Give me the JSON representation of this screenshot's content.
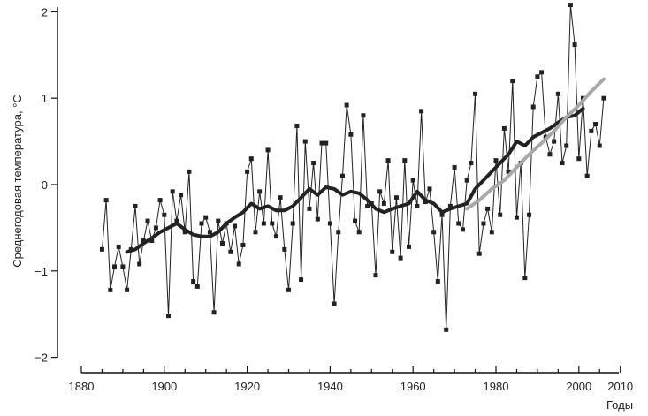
{
  "chart_data": {
    "type": "line",
    "title": "",
    "xlabel": "Годы",
    "ylabel": "Среднегодовая температура, °С",
    "xlim": [
      1880,
      2010
    ],
    "ylim": [
      -2,
      2
    ],
    "x_ticks": [
      "1880",
      "1900",
      "1920",
      "1940",
      "1960",
      "1980",
      "2000",
      "2010"
    ],
    "y_ticks": [
      "−2",
      "−1",
      "0",
      "1",
      "2"
    ],
    "grid": false,
    "legend": "none",
    "series": [
      {
        "style": "thin-line-square-markers",
        "color": "#222222",
        "x": [
          1885,
          1886,
          1887,
          1888,
          1889,
          1890,
          1891,
          1892,
          1893,
          1894,
          1895,
          1896,
          1897,
          1898,
          1899,
          1900,
          1901,
          1902,
          1903,
          1904,
          1905,
          1906,
          1907,
          1908,
          1909,
          1910,
          1911,
          1912,
          1913,
          1914,
          1915,
          1916,
          1917,
          1918,
          1919,
          1920,
          1921,
          1922,
          1923,
          1924,
          1925,
          1926,
          1927,
          1928,
          1929,
          1930,
          1931,
          1932,
          1933,
          1934,
          1935,
          1936,
          1937,
          1938,
          1939,
          1940,
          1941,
          1942,
          1943,
          1944,
          1945,
          1946,
          1947,
          1948,
          1949,
          1950,
          1951,
          1952,
          1953,
          1954,
          1955,
          1956,
          1957,
          1958,
          1959,
          1960,
          1961,
          1962,
          1963,
          1964,
          1965,
          1966,
          1967,
          1968,
          1969,
          1970,
          1971,
          1972,
          1973,
          1974,
          1975,
          1976,
          1977,
          1978,
          1979,
          1980,
          1981,
          1982,
          1983,
          1984,
          1985,
          1986,
          1987,
          1988,
          1989,
          1990,
          1991,
          1992,
          1993,
          1994,
          1995,
          1996,
          1997,
          1998,
          1999,
          2000,
          2001,
          2002,
          2003,
          2004,
          2005,
          2006
        ],
        "y": [
          -0.75,
          -0.18,
          -1.22,
          -0.95,
          -0.72,
          -0.95,
          -1.22,
          -0.75,
          -0.25,
          -0.92,
          -0.65,
          -0.42,
          -0.65,
          -0.5,
          -0.18,
          -0.35,
          -1.52,
          -0.08,
          -0.42,
          -0.12,
          -0.55,
          0.15,
          -1.12,
          -1.18,
          -0.45,
          -0.38,
          -0.55,
          -1.48,
          -0.42,
          -0.68,
          -0.45,
          -0.78,
          -0.48,
          -0.92,
          -0.7,
          0.15,
          0.3,
          -0.55,
          -0.08,
          -0.45,
          0.4,
          -0.45,
          -0.6,
          -0.15,
          -0.75,
          -1.22,
          -0.45,
          0.68,
          -1.1,
          0.5,
          -0.28,
          0.25,
          -0.4,
          0.48,
          0.48,
          -0.45,
          -1.38,
          -0.55,
          0.1,
          0.92,
          0.58,
          -0.42,
          -0.55,
          0.8,
          -0.25,
          -0.22,
          -1.05,
          -0.08,
          -0.22,
          0.28,
          -0.78,
          -0.15,
          -0.85,
          0.28,
          -0.72,
          0.05,
          -0.25,
          0.85,
          -0.2,
          -0.05,
          -0.55,
          -1.12,
          -0.35,
          -1.68,
          -0.25,
          0.2,
          -0.45,
          -0.52,
          0.05,
          0.25,
          1.05,
          -0.8,
          -0.45,
          -0.28,
          -0.55,
          0.28,
          -0.35,
          0.65,
          0.15,
          1.2,
          -0.38,
          0.25,
          -1.08,
          -0.35,
          0.9,
          1.25,
          1.3,
          0.55,
          0.35,
          0.5,
          1.05,
          0.25,
          0.45,
          2.08,
          1.62,
          0.3,
          1.0,
          0.1,
          0.62,
          0.7,
          0.45,
          1.0
        ]
      },
      {
        "style": "thick-black-smoothed",
        "color": "#222222",
        "x": [
          1891,
          1893,
          1895,
          1897,
          1899,
          1901,
          1903,
          1905,
          1907,
          1909,
          1911,
          1913,
          1915,
          1917,
          1919,
          1921,
          1923,
          1925,
          1927,
          1929,
          1931,
          1933,
          1935,
          1937,
          1939,
          1941,
          1943,
          1945,
          1947,
          1949,
          1951,
          1953,
          1955,
          1957,
          1959,
          1961,
          1963,
          1965,
          1967,
          1969,
          1971,
          1973,
          1975,
          1977,
          1979,
          1981,
          1983,
          1985,
          1987,
          1989,
          1991,
          1993,
          1995,
          1997,
          1999,
          2001
        ],
        "y": [
          -0.78,
          -0.75,
          -0.68,
          -0.62,
          -0.55,
          -0.5,
          -0.45,
          -0.52,
          -0.58,
          -0.6,
          -0.6,
          -0.55,
          -0.45,
          -0.38,
          -0.32,
          -0.22,
          -0.28,
          -0.25,
          -0.3,
          -0.3,
          -0.25,
          -0.15,
          -0.05,
          -0.12,
          -0.03,
          -0.05,
          -0.12,
          -0.08,
          -0.1,
          -0.18,
          -0.28,
          -0.32,
          -0.28,
          -0.25,
          -0.22,
          -0.08,
          -0.18,
          -0.22,
          -0.32,
          -0.28,
          -0.25,
          -0.22,
          -0.05,
          0.05,
          0.15,
          0.25,
          0.35,
          0.5,
          0.45,
          0.55,
          0.6,
          0.65,
          0.72,
          0.78,
          0.8,
          0.88
        ]
      },
      {
        "style": "thick-gray-smoothed",
        "color": "#a8a8a8",
        "x": [
          1973,
          1976,
          1979,
          1982,
          1985,
          1988,
          1991,
          1994,
          1997,
          2000,
          2003,
          2006
        ],
        "y": [
          -0.28,
          -0.18,
          -0.05,
          0.05,
          0.2,
          0.35,
          0.48,
          0.62,
          0.78,
          0.92,
          1.08,
          1.22
        ]
      }
    ]
  }
}
